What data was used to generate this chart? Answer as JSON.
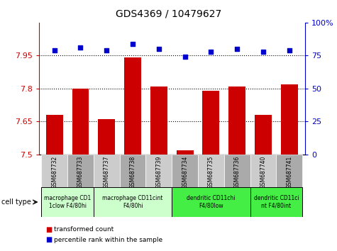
{
  "title": "GDS4369 / 10479627",
  "samples": [
    "GSM687732",
    "GSM687733",
    "GSM687737",
    "GSM687738",
    "GSM687739",
    "GSM687734",
    "GSM687735",
    "GSM687736",
    "GSM687740",
    "GSM687741"
  ],
  "transformed_counts": [
    7.68,
    7.8,
    7.66,
    7.94,
    7.81,
    7.52,
    7.79,
    7.81,
    7.68,
    7.82
  ],
  "percentile_ranks": [
    79,
    81,
    79,
    84,
    80,
    74,
    78,
    80,
    78,
    79
  ],
  "ylim_left": [
    7.5,
    8.1
  ],
  "ylim_right": [
    0,
    100
  ],
  "yticks_left": [
    7.5,
    7.65,
    7.8,
    7.95
  ],
  "yticks_right": [
    0,
    25,
    50,
    75,
    100
  ],
  "bar_color": "#cc0000",
  "dot_color": "#0000cc",
  "grid_color": "#000000",
  "xtick_bg_colors": [
    "#cccccc",
    "#aaaaaa",
    "#cccccc",
    "#aaaaaa",
    "#cccccc",
    "#aaaaaa",
    "#cccccc",
    "#aaaaaa",
    "#cccccc",
    "#aaaaaa"
  ],
  "cell_groups": [
    {
      "label": "macrophage CD1\n1clow F4/80hi",
      "indices": [
        0,
        1
      ],
      "color": "#ccffcc"
    },
    {
      "label": "macrophage CD11cint\nF4/80hi",
      "indices": [
        2,
        3,
        4
      ],
      "color": "#ccffcc"
    },
    {
      "label": "dendritic CD11chi\nF4/80low",
      "indices": [
        5,
        6,
        7
      ],
      "color": "#44ee44"
    },
    {
      "label": "dendritic CD11ci\nnt F4/80int",
      "indices": [
        8,
        9
      ],
      "color": "#44ee44"
    }
  ],
  "left_axis_color": "#cc0000",
  "right_axis_color": "#0000cc",
  "bar_width": 0.65,
  "baseline": 7.5
}
